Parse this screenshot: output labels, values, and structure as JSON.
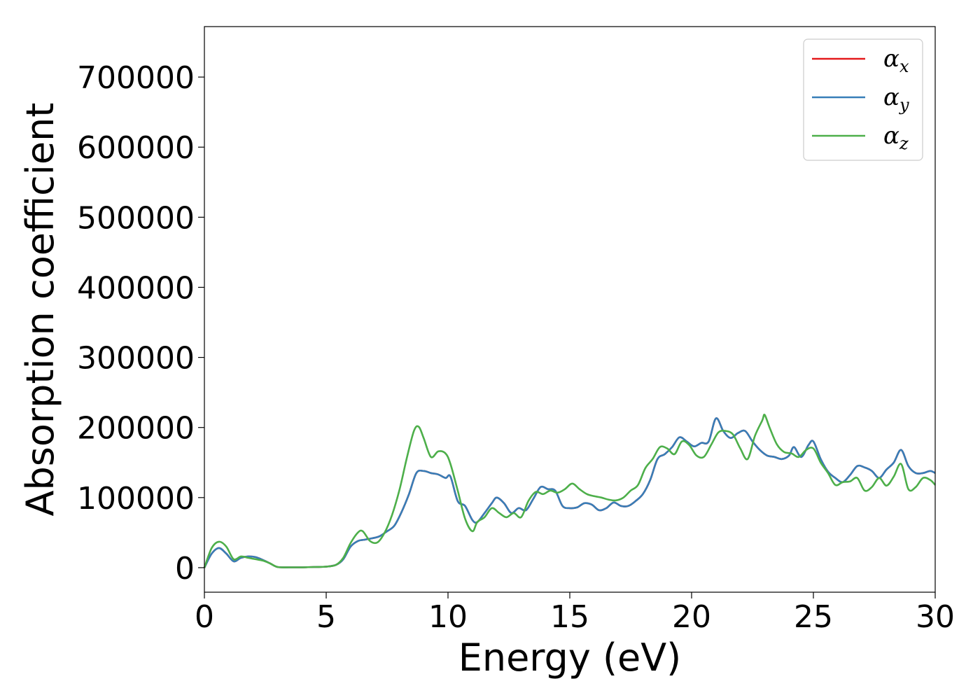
{
  "chart_data": {
    "type": "line",
    "title": "",
    "xlabel": "Energy (eV)",
    "ylabel": "Absorption coefficient",
    "xlim": [
      0,
      30
    ],
    "ylim": [
      -35000,
      772000
    ],
    "xticks": [
      0,
      5,
      10,
      15,
      20,
      25,
      30
    ],
    "yticks": [
      0,
      100000,
      200000,
      300000,
      400000,
      500000,
      600000,
      700000
    ],
    "grid": false,
    "legend_position": "top-right",
    "series": [
      {
        "name": "α",
        "subscript": "x",
        "color": "#e41a1c",
        "x": [
          0,
          0.3,
          0.6,
          0.9,
          1.2,
          1.5,
          1.8,
          2.1,
          2.4,
          2.7,
          3.0,
          3.5,
          4.0,
          4.5,
          5.0,
          5.4,
          5.7,
          6.0,
          6.3,
          6.6,
          6.9,
          7.2,
          7.5,
          7.8,
          8.1,
          8.4,
          8.7,
          9.0,
          9.3,
          9.6,
          9.9,
          10.1,
          10.4,
          10.7,
          11.0,
          11.2,
          11.5,
          11.8,
          12.0,
          12.3,
          12.6,
          12.9,
          13.2,
          13.5,
          13.8,
          14.1,
          14.4,
          14.7,
          15.0,
          15.3,
          15.6,
          15.9,
          16.2,
          16.5,
          16.8,
          17.1,
          17.4,
          17.7,
          18.0,
          18.3,
          18.6,
          18.9,
          19.2,
          19.5,
          19.8,
          20.1,
          20.4,
          20.7,
          21.0,
          21.3,
          21.6,
          21.9,
          22.2,
          22.5,
          22.8,
          23.1,
          23.4,
          23.7,
          24.0,
          24.2,
          24.5,
          24.8,
          25.0,
          25.3,
          25.6,
          25.9,
          26.2,
          26.5,
          26.8,
          27.1,
          27.4,
          27.7,
          28.0,
          28.3,
          28.6,
          28.9,
          29.2,
          29.5,
          29.8,
          30.0
        ],
        "y": [
          0,
          20000,
          28000,
          20000,
          9000,
          14000,
          16000,
          15000,
          11000,
          6000,
          1000,
          500,
          500,
          1000,
          1500,
          4000,
          12000,
          30000,
          38000,
          40000,
          42000,
          45000,
          52000,
          60000,
          80000,
          105000,
          135000,
          138000,
          135000,
          133000,
          128000,
          130000,
          95000,
          88000,
          68000,
          65000,
          78000,
          92000,
          100000,
          92000,
          78000,
          85000,
          82000,
          98000,
          115000,
          112000,
          110000,
          88000,
          85000,
          86000,
          92000,
          90000,
          82000,
          85000,
          93000,
          88000,
          88000,
          95000,
          105000,
          125000,
          155000,
          162000,
          172000,
          186000,
          180000,
          173000,
          178000,
          180000,
          213000,
          195000,
          185000,
          192000,
          195000,
          180000,
          168000,
          160000,
          158000,
          155000,
          160000,
          172000,
          158000,
          175000,
          180000,
          155000,
          137000,
          128000,
          122000,
          132000,
          145000,
          143000,
          138000,
          128000,
          140000,
          150000,
          168000,
          145000,
          135000,
          135000,
          138000,
          135000
        ]
      },
      {
        "name": "α",
        "subscript": "y",
        "color": "#377eb8",
        "x": [
          0,
          0.3,
          0.6,
          0.9,
          1.2,
          1.5,
          1.8,
          2.1,
          2.4,
          2.7,
          3.0,
          3.5,
          4.0,
          4.5,
          5.0,
          5.4,
          5.7,
          6.0,
          6.3,
          6.6,
          6.9,
          7.2,
          7.5,
          7.8,
          8.1,
          8.4,
          8.7,
          9.0,
          9.3,
          9.6,
          9.9,
          10.1,
          10.4,
          10.7,
          11.0,
          11.2,
          11.5,
          11.8,
          12.0,
          12.3,
          12.6,
          12.9,
          13.2,
          13.5,
          13.8,
          14.1,
          14.4,
          14.7,
          15.0,
          15.3,
          15.6,
          15.9,
          16.2,
          16.5,
          16.8,
          17.1,
          17.4,
          17.7,
          18.0,
          18.3,
          18.6,
          18.9,
          19.2,
          19.5,
          19.8,
          20.1,
          20.4,
          20.7,
          21.0,
          21.3,
          21.6,
          21.9,
          22.2,
          22.5,
          22.8,
          23.1,
          23.4,
          23.7,
          24.0,
          24.2,
          24.5,
          24.8,
          25.0,
          25.3,
          25.6,
          25.9,
          26.2,
          26.5,
          26.8,
          27.1,
          27.4,
          27.7,
          28.0,
          28.3,
          28.6,
          28.9,
          29.2,
          29.5,
          29.8,
          30.0
        ],
        "y": [
          0,
          20000,
          28000,
          20000,
          9000,
          14000,
          16000,
          15000,
          11000,
          6000,
          1000,
          500,
          500,
          1000,
          1500,
          4000,
          12000,
          30000,
          38000,
          40000,
          42000,
          45000,
          52000,
          60000,
          80000,
          105000,
          135000,
          138000,
          135000,
          133000,
          128000,
          130000,
          95000,
          88000,
          68000,
          65000,
          78000,
          92000,
          100000,
          92000,
          78000,
          85000,
          82000,
          98000,
          115000,
          112000,
          110000,
          88000,
          85000,
          86000,
          92000,
          90000,
          82000,
          85000,
          93000,
          88000,
          88000,
          95000,
          105000,
          125000,
          155000,
          162000,
          172000,
          186000,
          180000,
          173000,
          178000,
          180000,
          213000,
          195000,
          185000,
          192000,
          195000,
          180000,
          168000,
          160000,
          158000,
          155000,
          160000,
          172000,
          158000,
          175000,
          180000,
          155000,
          137000,
          128000,
          122000,
          132000,
          145000,
          143000,
          138000,
          128000,
          140000,
          150000,
          168000,
          145000,
          135000,
          135000,
          138000,
          135000
        ]
      },
      {
        "name": "α",
        "subscript": "z",
        "color": "#4daf4a",
        "x": [
          0,
          0.3,
          0.6,
          0.9,
          1.2,
          1.5,
          1.8,
          2.1,
          2.4,
          2.7,
          3.0,
          3.5,
          4.0,
          4.5,
          5.0,
          5.4,
          5.7,
          6.0,
          6.3,
          6.5,
          6.8,
          7.1,
          7.4,
          7.7,
          8.0,
          8.3,
          8.6,
          8.8,
          9.0,
          9.3,
          9.6,
          9.9,
          10.1,
          10.4,
          10.7,
          11.0,
          11.2,
          11.5,
          11.8,
          12.1,
          12.4,
          12.7,
          13.0,
          13.3,
          13.6,
          13.9,
          14.2,
          14.5,
          14.8,
          15.1,
          15.4,
          15.7,
          16.0,
          16.3,
          16.6,
          16.9,
          17.2,
          17.5,
          17.8,
          18.1,
          18.4,
          18.7,
          19.0,
          19.3,
          19.6,
          19.9,
          20.2,
          20.5,
          20.8,
          21.1,
          21.4,
          21.7,
          22.0,
          22.3,
          22.6,
          22.9,
          23.0,
          23.2,
          23.5,
          23.8,
          24.1,
          24.4,
          24.7,
          25.0,
          25.3,
          25.6,
          25.9,
          26.2,
          26.5,
          26.8,
          27.1,
          27.4,
          27.7,
          28.0,
          28.3,
          28.6,
          28.9,
          29.2,
          29.5,
          29.8,
          30.0
        ],
        "y": [
          0,
          28000,
          37000,
          30000,
          12000,
          16000,
          14000,
          12000,
          10000,
          6000,
          1000,
          500,
          500,
          1000,
          1500,
          4000,
          14000,
          35000,
          50000,
          52000,
          38000,
          36000,
          50000,
          75000,
          110000,
          155000,
          195000,
          201000,
          185000,
          158000,
          166000,
          163000,
          148000,
          110000,
          70000,
          52000,
          65000,
          72000,
          85000,
          78000,
          72000,
          78000,
          72000,
          95000,
          108000,
          105000,
          110000,
          107000,
          112000,
          120000,
          112000,
          105000,
          102000,
          100000,
          97000,
          96000,
          100000,
          110000,
          118000,
          142000,
          155000,
          172000,
          170000,
          162000,
          180000,
          175000,
          160000,
          158000,
          175000,
          193000,
          195000,
          190000,
          170000,
          155000,
          188000,
          210000,
          218000,
          200000,
          176000,
          165000,
          163000,
          158000,
          168000,
          170000,
          150000,
          135000,
          118000,
          122000,
          123000,
          128000,
          110000,
          115000,
          128000,
          117000,
          130000,
          148000,
          112000,
          115000,
          128000,
          125000,
          118000
        ]
      }
    ]
  }
}
